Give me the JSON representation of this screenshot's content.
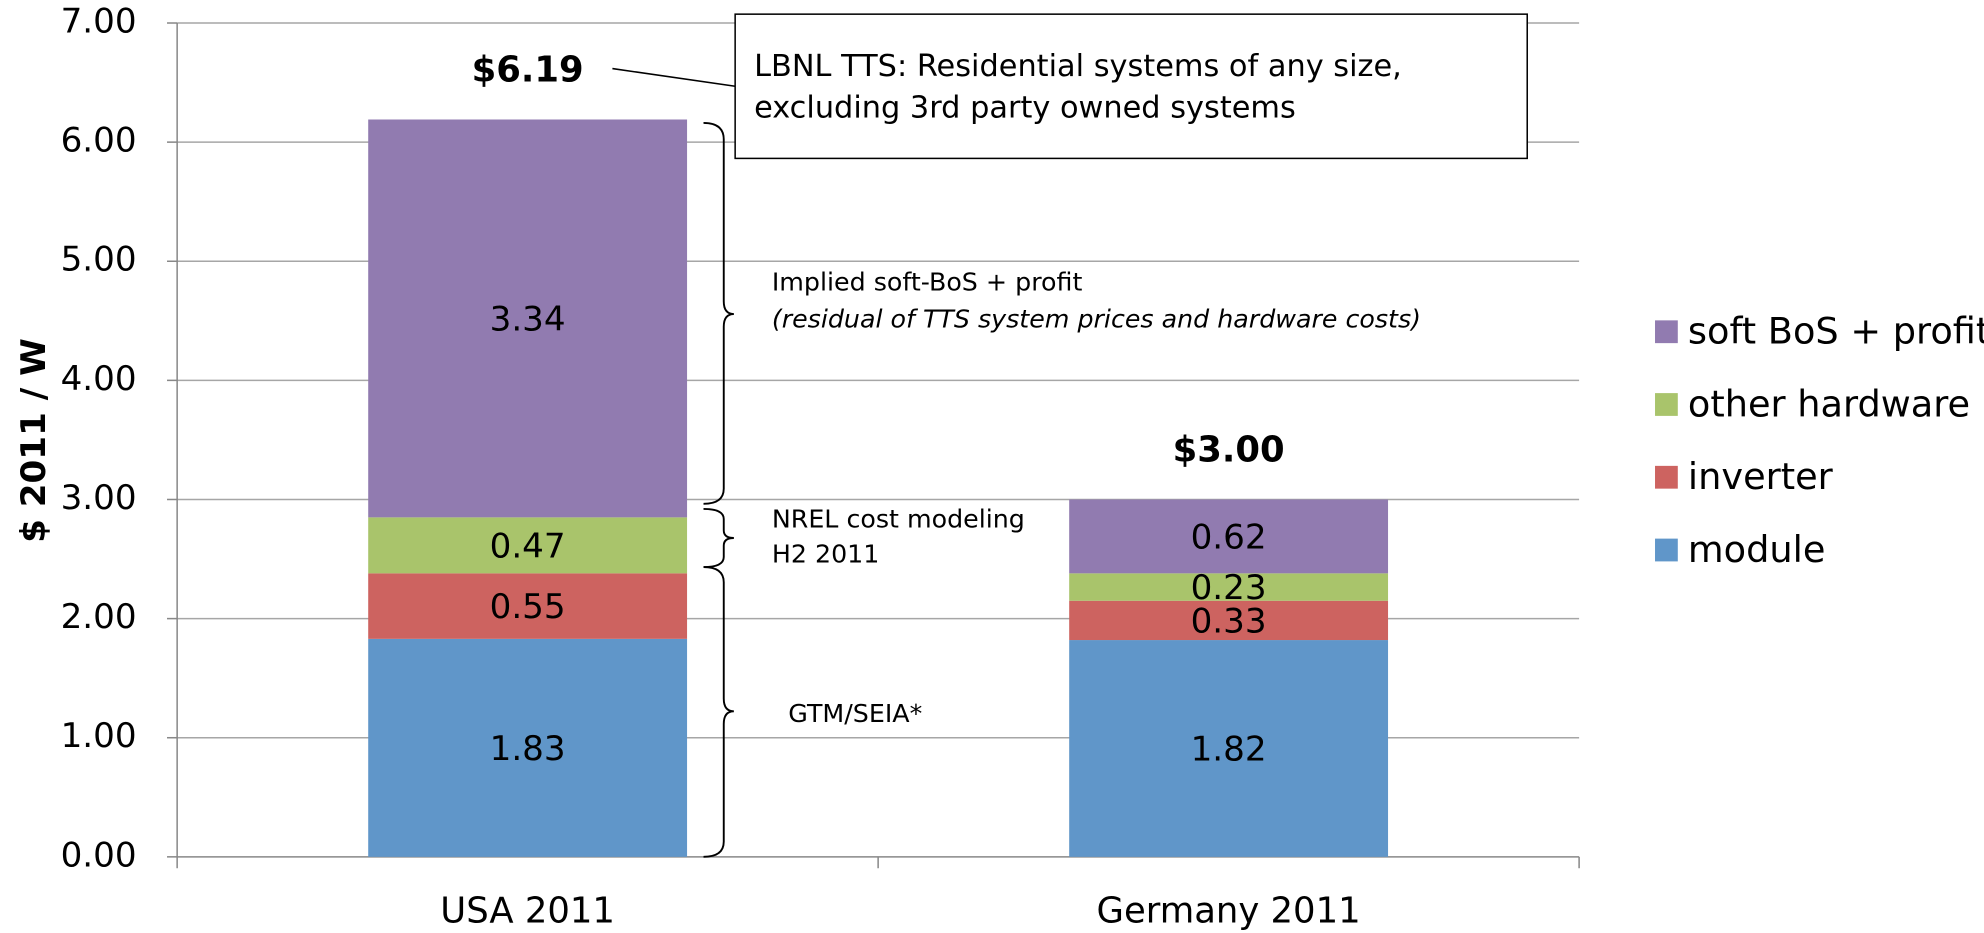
{
  "chart_data": {
    "type": "stacked_bar",
    "categories": [
      "USA 2011",
      "Germany 2011"
    ],
    "series": [
      {
        "name": "module",
        "color": "#6096c9",
        "values": [
          1.83,
          1.82
        ]
      },
      {
        "name": "inverter",
        "color": "#cd6360",
        "values": [
          0.55,
          0.33
        ]
      },
      {
        "name": "other hardware",
        "color": "#a9c46b",
        "values": [
          0.47,
          0.23
        ]
      },
      {
        "name": "soft BoS + profit",
        "color": "#917bb0",
        "values": [
          3.34,
          0.62
        ]
      }
    ],
    "total_labels": [
      "$6.19",
      "$3.00"
    ],
    "y_label": "$ 2011 / W",
    "ylim": [
      0,
      7
    ],
    "yticks": [
      {
        "value": 0,
        "label": "0.00"
      },
      {
        "value": 1,
        "label": "1.00"
      },
      {
        "value": 2,
        "label": "2.00"
      },
      {
        "value": 3,
        "label": "3.00"
      },
      {
        "value": 4,
        "label": "4.00"
      },
      {
        "value": 5,
        "label": "5.00"
      },
      {
        "value": 6,
        "label": "6.00"
      },
      {
        "value": 7,
        "label": "7.00"
      }
    ],
    "grid": true,
    "legend": "right",
    "annotations": {
      "callout": [
        "LBNL TTS: Residential systems of any size,",
        "excluding 3rd party owned systems"
      ],
      "soft_bos": [
        "Implied soft-BoS + profit",
        "(residual of TTS system prices and hardware costs)"
      ],
      "nrel": [
        "NREL cost modeling",
        "H2 2011"
      ],
      "gtm": "GTM/SEIA*"
    }
  }
}
